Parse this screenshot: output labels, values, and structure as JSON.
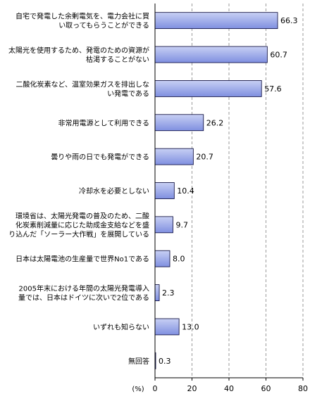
{
  "chart_data": {
    "type": "bar",
    "orientation": "horizontal",
    "categories": [
      [
        "自宅で発電した余剰電気を、電力会社に買",
        "い取ってもらうことができる"
      ],
      [
        "太陽光を使用するため、発電のための資源が",
        "枯渇することがない"
      ],
      [
        "二酸化炭素など、温室効果ガスを排出しな",
        "い発電である"
      ],
      [
        "非常用電源として利用できる"
      ],
      [
        "曇りや雨の日でも発電ができる"
      ],
      [
        "冷却水を必要としない"
      ],
      [
        "環境省は、太陽光発電の普及のため、二酸",
        "化炭素削減量に応じた助成金支給などを盛",
        "り込んだ「ソーラー大作戦」を展開している"
      ],
      [
        "日本は太陽電池の生産量で世界No1である"
      ],
      [
        "2005年末における年間の太陽光発電導入",
        "量では、日本はドイツに次いで2位である"
      ],
      [
        "いずれも知らない"
      ],
      [
        "無回答"
      ]
    ],
    "values": [
      66.3,
      60.7,
      57.6,
      26.2,
      20.7,
      10.4,
      9.7,
      8.0,
      2.3,
      13.0,
      0.3
    ],
    "value_labels": [
      "66.3",
      "60.7",
      "57.6",
      "26.2",
      "20.7",
      "10.4",
      "9.7",
      "8.0",
      "2.3",
      "13.0",
      "0.3"
    ],
    "xlim": [
      0,
      80
    ],
    "xticks": [
      0,
      20,
      40,
      60,
      80
    ],
    "xunit": "(%)",
    "grid": "vertical dashed",
    "colors": {
      "bar_fill_start": "#c8d0f4",
      "bar_fill_end": "#7f8fe0",
      "bar_stroke": "#000033",
      "grid": "#999999",
      "axis": "#000000"
    }
  }
}
